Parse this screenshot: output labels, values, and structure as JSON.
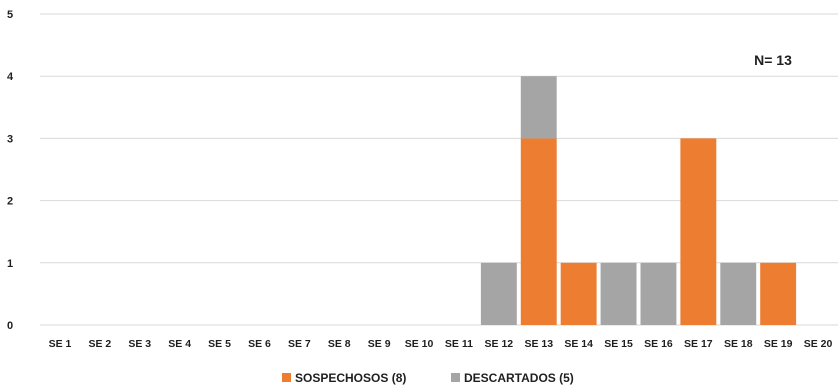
{
  "chart_data": {
    "type": "bar",
    "stacked": true,
    "categories": [
      "SE 1",
      "SE 2",
      "SE 3",
      "SE 4",
      "SE 5",
      "SE 6",
      "SE 7",
      "SE 8",
      "SE 9",
      "SE 10",
      "SE 11",
      "SE 12",
      "SE 13",
      "SE 14",
      "SE 15",
      "SE 16",
      "SE 17",
      "SE 18",
      "SE 19",
      "SE 20"
    ],
    "series": [
      {
        "name": "SOSPECHOSOS (8)",
        "color": "#ED7D31",
        "values": [
          0,
          0,
          0,
          0,
          0,
          0,
          0,
          0,
          0,
          0,
          0,
          0,
          3,
          1,
          0,
          0,
          3,
          0,
          1,
          0
        ]
      },
      {
        "name": "DESCARTADOS (5)",
        "color": "#A5A5A5",
        "values": [
          0,
          0,
          0,
          0,
          0,
          0,
          0,
          0,
          0,
          0,
          0,
          1,
          1,
          0,
          1,
          1,
          0,
          1,
          0,
          0
        ]
      }
    ],
    "ylim": [
      0,
      5
    ],
    "yticks": [
      "0",
      "1",
      "2",
      "3",
      "4",
      "5"
    ],
    "grid": true,
    "legend_position": "bottom",
    "annotation": "N= 13",
    "title": "",
    "xlabel": "",
    "ylabel": ""
  }
}
